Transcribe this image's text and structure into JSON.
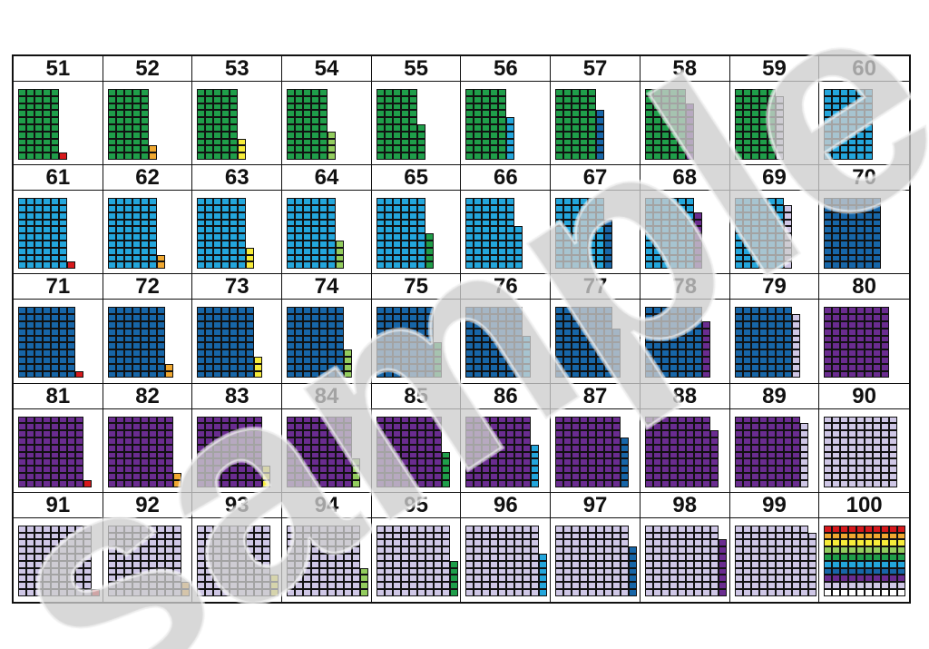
{
  "worksheet": {
    "numbers": [
      51,
      52,
      53,
      54,
      55,
      56,
      57,
      58,
      59,
      60,
      61,
      62,
      63,
      64,
      65,
      66,
      67,
      68,
      69,
      70,
      71,
      72,
      73,
      74,
      75,
      76,
      77,
      78,
      79,
      80,
      81,
      82,
      83,
      84,
      85,
      86,
      87,
      88,
      89,
      90,
      91,
      92,
      93,
      94,
      95,
      96,
      97,
      98,
      99,
      100
    ],
    "digit_colors": {
      "1": "#d7191c",
      "2": "#f0a830",
      "3": "#f7ec3a",
      "4": "#93cd5e",
      "5": "#1f9e4a",
      "6": "#23a6dc",
      "7": "#1766a8",
      "8": "#6a2c90",
      "9": "#cfc7e6",
      "0": "#ffffff"
    },
    "hundred_row_colors": [
      "#d7191c",
      "#f0a830",
      "#f7ec3a",
      "#93cd5e",
      "#1f9e4a",
      "#23a6dc",
      "#1766a8",
      "#6a2c90",
      "#cfc7e6",
      "#ffffff"
    ]
  },
  "watermark": "sample"
}
